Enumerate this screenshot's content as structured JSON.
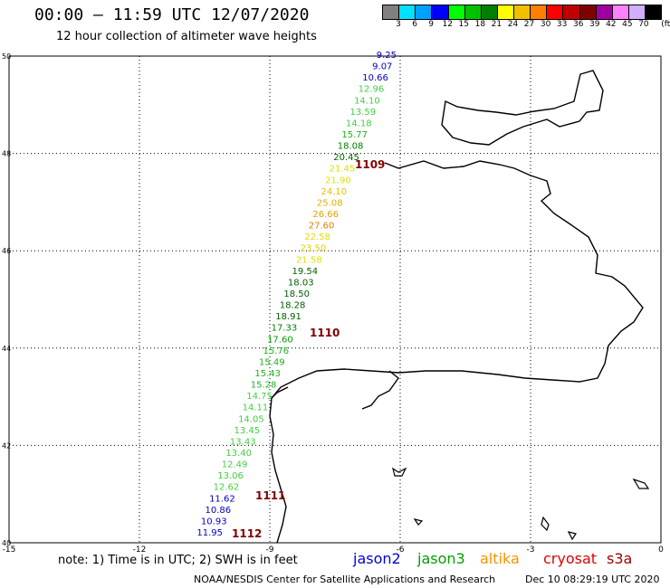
{
  "header": {
    "title": "00:00 – 11:59 UTC 12/07/2020",
    "subtitle": "12 hour collection of altimeter wave heights"
  },
  "legend": {
    "unit": "(ft)",
    "colors": [
      "#808080",
      "#00e0ff",
      "#00a0ff",
      "#0000ff",
      "#00ff00",
      "#00c000",
      "#008000",
      "#ffff00",
      "#f0c000",
      "#ff8000",
      "#ff0000",
      "#c00000",
      "#800000",
      "#a000a0",
      "#ff80ff",
      "#d0b0ff",
      "#000000"
    ],
    "labels": [
      "3",
      "6",
      "9",
      "12",
      "15",
      "18",
      "21",
      "24",
      "27",
      "30",
      "33",
      "36",
      "39",
      "42",
      "45",
      "70"
    ]
  },
  "map": {
    "lat_ticks": [
      "40",
      "42",
      "44",
      "46",
      "48",
      "50"
    ],
    "lon_ticks": [
      "-15",
      "-12",
      "-9",
      "-6",
      "-3",
      "0"
    ],
    "readings": [
      {
        "v": "9.25",
        "c": "#0000c0"
      },
      {
        "v": "9.07",
        "c": "#0000c0"
      },
      {
        "v": "10.66",
        "c": "#0000c0"
      },
      {
        "v": "12.96",
        "c": "#40d040"
      },
      {
        "v": "14.10",
        "c": "#40d040"
      },
      {
        "v": "13.59",
        "c": "#40d040"
      },
      {
        "v": "14.18",
        "c": "#40d040"
      },
      {
        "v": "15.77",
        "c": "#20b020"
      },
      {
        "v": "18.08",
        "c": "#008000"
      },
      {
        "v": "20.45",
        "c": "#006000"
      },
      {
        "v": "21.45",
        "c": "#e0e000"
      },
      {
        "v": "21.90",
        "c": "#e0e000"
      },
      {
        "v": "24.10",
        "c": "#e0c000"
      },
      {
        "v": "25.08",
        "c": "#e0b000"
      },
      {
        "v": "26.66",
        "c": "#e0a000"
      },
      {
        "v": "27.60",
        "c": "#e08000"
      },
      {
        "v": "22.58",
        "c": "#e0e000"
      },
      {
        "v": "23.50",
        "c": "#e0d000"
      },
      {
        "v": "21.58",
        "c": "#e0e000"
      },
      {
        "v": "19.54",
        "c": "#006000"
      },
      {
        "v": "18.03",
        "c": "#006000"
      },
      {
        "v": "18.50",
        "c": "#006000"
      },
      {
        "v": "18.28",
        "c": "#006000"
      },
      {
        "v": "18.91",
        "c": "#006000"
      },
      {
        "v": "17.33",
        "c": "#008000"
      },
      {
        "v": "17.60",
        "c": "#00a000"
      },
      {
        "v": "15.76",
        "c": "#20b020"
      },
      {
        "v": "15.49",
        "c": "#20b020"
      },
      {
        "v": "15.43",
        "c": "#20b020"
      },
      {
        "v": "15.28",
        "c": "#20b020"
      },
      {
        "v": "14.75",
        "c": "#40d040"
      },
      {
        "v": "14.11",
        "c": "#40d040"
      },
      {
        "v": "14.05",
        "c": "#40d040"
      },
      {
        "v": "13.45",
        "c": "#40d040"
      },
      {
        "v": "13.43",
        "c": "#40d040"
      },
      {
        "v": "13.40",
        "c": "#40d040"
      },
      {
        "v": "12.49",
        "c": "#40d040"
      },
      {
        "v": "13.06",
        "c": "#40d040"
      },
      {
        "v": "12.62",
        "c": "#40d040"
      },
      {
        "v": "11.62",
        "c": "#0000c0"
      },
      {
        "v": "10.86",
        "c": "#0000c0"
      },
      {
        "v": "10.93",
        "c": "#0000c0"
      },
      {
        "v": "11.95",
        "c": "#0000c0"
      }
    ],
    "times": [
      "1109",
      "1110",
      "1111",
      "1112"
    ],
    "time_color": "#800000"
  },
  "footer": {
    "note": "note: 1) Time is in UTC; 2) SWH is in feet",
    "satellites": [
      {
        "name": "jason2",
        "color": "#0000e0"
      },
      {
        "name": "jason3",
        "color": "#00a000"
      },
      {
        "name": "altika",
        "color": "#ff9000"
      },
      {
        "name": "cryosat",
        "color": "#e00000"
      },
      {
        "name": "s3a",
        "color": "#a00000"
      }
    ],
    "credit": "NOAA/NESDIS Center for Satellite Applications and Research",
    "stamp": "Dec 10 08:29:19 UTC 2020"
  }
}
